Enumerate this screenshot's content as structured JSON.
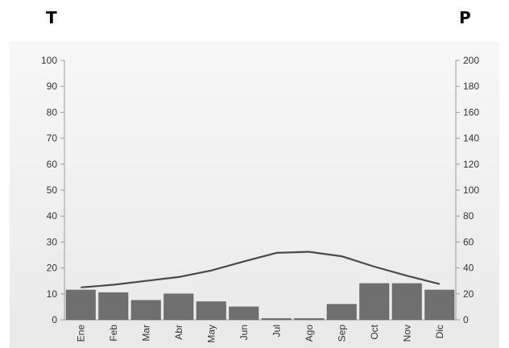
{
  "corner_labels": {
    "left": "T",
    "right": "P"
  },
  "chart_data": {
    "type": "bar+line",
    "title": "",
    "categories": [
      "Ene",
      "Feb",
      "Mar",
      "Abr",
      "May",
      "Jun",
      "Jul",
      "Ago",
      "Sep",
      "Oct",
      "Nov",
      "Dic"
    ],
    "left_axis": {
      "label": "T",
      "range": [
        0,
        100
      ],
      "ticks": [
        0,
        10,
        20,
        30,
        40,
        50,
        60,
        70,
        80,
        90,
        100
      ]
    },
    "right_axis": {
      "label": "P",
      "range": [
        0,
        200
      ],
      "ticks": [
        0,
        20,
        40,
        60,
        80,
        100,
        120,
        140,
        160,
        180,
        200
      ]
    },
    "series": [
      {
        "type": "bar",
        "axis": "right",
        "color": "#6f6f6f",
        "values": [
          23,
          21,
          15,
          20,
          14,
          10,
          1,
          1,
          12,
          28,
          28,
          23
        ]
      },
      {
        "type": "line",
        "axis": "left",
        "color": "#4a4a4a",
        "values": [
          12.5,
          13.5,
          15,
          16.5,
          19,
          22.5,
          25.8,
          26.2,
          24.5,
          20.5,
          17,
          13.8
        ]
      }
    ],
    "grid": false,
    "legend": "none",
    "plot_background": "#f3f3f3"
  }
}
